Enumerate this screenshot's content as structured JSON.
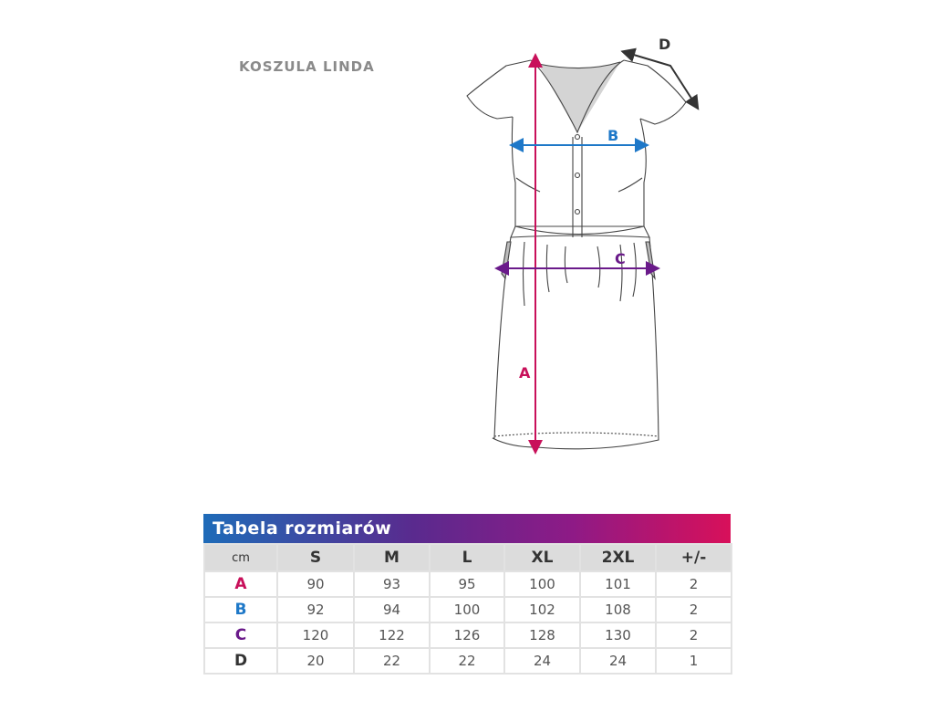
{
  "product_title": "KOSZULA LINDA",
  "diagram_labels": {
    "A": "A",
    "B": "B",
    "C": "C",
    "D": "D"
  },
  "colors": {
    "A": "#c8105a",
    "B": "#1e78c8",
    "C": "#6a1a8a",
    "D": "#333333"
  },
  "table": {
    "title": "Tabela rozmiarów",
    "columns": [
      "cm",
      "S",
      "M",
      "L",
      "XL",
      "2XL",
      "+/-"
    ],
    "rows": [
      {
        "label": "A",
        "values": [
          "90",
          "93",
          "95",
          "100",
          "101",
          "2"
        ]
      },
      {
        "label": "B",
        "values": [
          "92",
          "94",
          "100",
          "102",
          "108",
          "2"
        ]
      },
      {
        "label": "C",
        "values": [
          "120",
          "122",
          "126",
          "128",
          "130",
          "2"
        ]
      },
      {
        "label": "D",
        "values": [
          "20",
          "22",
          "22",
          "24",
          "24",
          "1"
        ]
      }
    ]
  }
}
